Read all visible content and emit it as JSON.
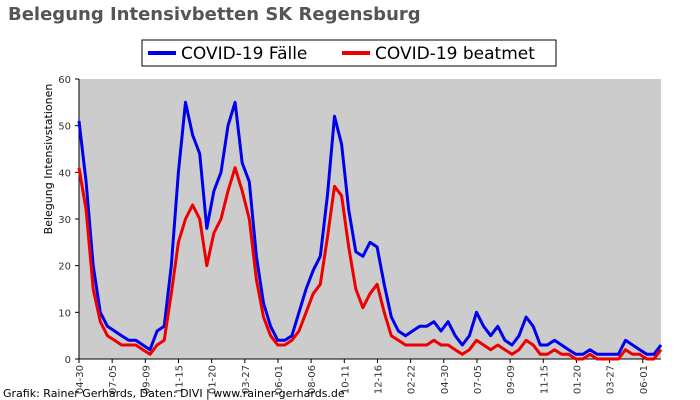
{
  "chart_data": {
    "type": "line",
    "title": "Belegung Intensivbetten SK Regensburg",
    "ylabel": "Belegung Intensivstationen",
    "xlabel": "",
    "ylim": [
      0,
      60
    ],
    "y_ticks": [
      "0",
      "10",
      "20",
      "30",
      "40",
      "50",
      "60"
    ],
    "x_tick_labels": [
      "04-30",
      "07-05",
      "09-09",
      "11-15",
      "01-20",
      "03-27",
      "06-01",
      "08-06",
      "10-11",
      "12-16",
      "02-22",
      "04-30",
      "07-05",
      "09-09",
      "11-15",
      "01-20",
      "03-27",
      "06-01"
    ],
    "legend_position": "top-center",
    "grid": false,
    "background": "#cccccc",
    "credit": "Grafik: Rainer Gerhards, Daten: DIVI | www.rainer-gerhards.de",
    "x": [
      "04-30",
      "05-14",
      "05-28",
      "06-11",
      "06-25",
      "07-09",
      "07-23",
      "08-06",
      "08-20",
      "09-03",
      "09-17",
      "10-01",
      "10-15",
      "10-29",
      "11-12",
      "11-26",
      "12-10",
      "12-24",
      "01-07",
      "01-21",
      "02-04",
      "02-18",
      "03-04",
      "03-18",
      "04-01",
      "04-15",
      "04-29",
      "05-13",
      "05-27",
      "06-10",
      "06-24",
      "07-08",
      "07-22",
      "08-05",
      "08-19",
      "09-02",
      "09-16",
      "09-30",
      "10-14",
      "10-28",
      "11-11",
      "11-25",
      "12-09",
      "12-23",
      "01-06",
      "01-20",
      "02-03",
      "02-17",
      "03-03",
      "03-17",
      "03-31",
      "04-14",
      "04-28",
      "05-12",
      "05-26",
      "06-09",
      "06-23",
      "07-07",
      "07-21",
      "08-04",
      "08-18",
      "09-01",
      "09-15",
      "09-29",
      "10-13",
      "10-27",
      "11-10",
      "11-24",
      "12-08",
      "12-22",
      "01-05",
      "01-19",
      "02-02",
      "02-16",
      "03-02",
      "03-16",
      "03-30",
      "04-13",
      "04-27",
      "05-11",
      "05-25",
      "06-08",
      "06-22"
    ],
    "series": [
      {
        "name": "COVID-19 Fälle",
        "color": "#0000ee",
        "values": [
          51,
          38,
          20,
          10,
          7,
          6,
          5,
          4,
          4,
          3,
          2,
          6,
          7,
          20,
          40,
          55,
          48,
          44,
          28,
          36,
          40,
          50,
          55,
          42,
          38,
          22,
          12,
          7,
          4,
          4,
          5,
          10,
          15,
          19,
          22,
          35,
          52,
          46,
          32,
          23,
          22,
          25,
          24,
          16,
          9,
          6,
          5,
          6,
          7,
          7,
          8,
          6,
          8,
          5,
          3,
          5,
          10,
          7,
          5,
          7,
          4,
          3,
          5,
          9,
          7,
          3,
          3,
          4,
          3,
          2,
          1,
          1,
          2,
          1,
          1,
          1,
          1,
          4,
          3,
          2,
          1,
          1,
          3
        ]
      },
      {
        "name": "COVID-19 beatmet",
        "color": "#ee0000",
        "values": [
          41,
          32,
          15,
          8,
          5,
          4,
          3,
          3,
          3,
          2,
          1,
          3,
          4,
          14,
          25,
          30,
          33,
          30,
          20,
          27,
          30,
          36,
          41,
          36,
          30,
          17,
          9,
          5,
          3,
          3,
          4,
          6,
          10,
          14,
          16,
          26,
          37,
          35,
          24,
          15,
          11,
          14,
          16,
          10,
          5,
          4,
          3,
          3,
          3,
          3,
          4,
          3,
          3,
          2,
          1,
          2,
          4,
          3,
          2,
          3,
          2,
          1,
          2,
          4,
          3,
          1,
          1,
          2,
          1,
          1,
          0,
          0,
          1,
          0,
          0,
          0,
          0,
          2,
          1,
          1,
          0,
          0,
          2
        ]
      }
    ]
  }
}
